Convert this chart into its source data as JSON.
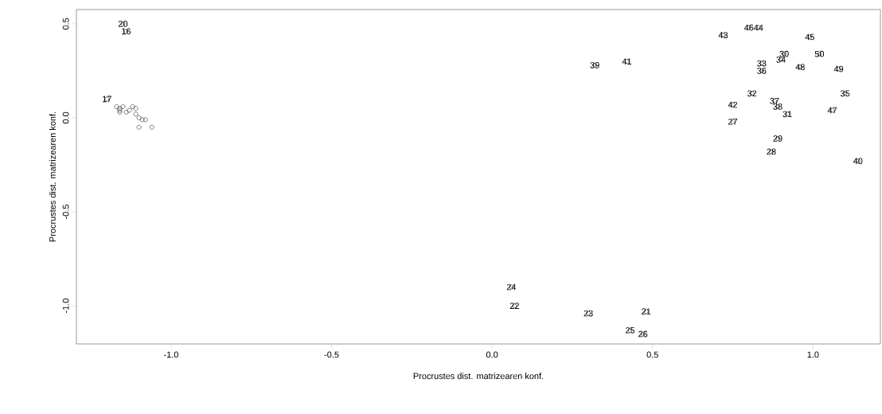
{
  "chart_data": {
    "type": "scatter",
    "xlabel": "Procrustes dist. matrizearen konf.",
    "ylabel": "Procrustes dist. matrizearen konf.",
    "marker": "circle",
    "color": "#000000",
    "xlim": [
      -1.295,
      1.21
    ],
    "ylim": [
      -1.203,
      0.576
    ],
    "xticks": [
      {
        "value": -1.0,
        "label": "-1.0"
      },
      {
        "value": -0.5,
        "label": "-0.5"
      },
      {
        "value": 0.0,
        "label": "0.0"
      },
      {
        "value": 0.5,
        "label": "0.5"
      },
      {
        "value": 1.0,
        "label": "1.0"
      }
    ],
    "yticks": [
      {
        "value": -1.0,
        "label": "-1.0"
      },
      {
        "value": -0.5,
        "label": "-0.5"
      },
      {
        "value": 0.0,
        "label": "0.0"
      },
      {
        "value": 0.5,
        "label": "0.5"
      }
    ],
    "x": [
      -1.15,
      -1.14,
      -1.2,
      -1.17,
      -1.16,
      -1.16,
      -1.15,
      -1.12,
      -1.11,
      -1.13,
      -1.1,
      -1.09,
      -1.1,
      -1.08,
      -1.16,
      -1.14,
      -1.11,
      -1.06,
      0.32,
      0.42,
      0.72,
      0.8,
      0.83,
      0.99,
      0.91,
      0.9,
      1.02,
      0.84,
      0.84,
      0.96,
      1.08,
      0.81,
      1.1,
      0.88,
      0.75,
      0.89,
      0.92,
      1.06,
      0.75,
      0.89,
      0.87,
      1.14,
      0.06,
      0.07,
      0.3,
      0.48,
      0.43,
      0.47
    ],
    "values": [
      0.5,
      0.46,
      0.1,
      0.06,
      0.05,
      0.04,
      0.06,
      0.06,
      0.05,
      0.04,
      0.0,
      -0.01,
      -0.05,
      -0.01,
      0.03,
      0.03,
      0.02,
      -0.05,
      0.28,
      0.3,
      0.44,
      0.48,
      0.48,
      0.43,
      0.34,
      0.31,
      0.34,
      0.29,
      0.25,
      0.27,
      0.26,
      0.13,
      0.13,
      0.09,
      0.07,
      0.06,
      0.02,
      0.04,
      -0.02,
      -0.11,
      -0.18,
      -0.23,
      -0.9,
      -1.0,
      -1.04,
      -1.03,
      -1.13,
      -1.15
    ],
    "annotations": [
      {
        "text": "20",
        "x": -1.15,
        "y": 0.5
      },
      {
        "text": "16",
        "x": -1.14,
        "y": 0.46
      },
      {
        "text": "17",
        "x": -1.2,
        "y": 0.1
      },
      {
        "text": "39",
        "x": 0.32,
        "y": 0.28
      },
      {
        "text": "41",
        "x": 0.42,
        "y": 0.3
      },
      {
        "text": "43",
        "x": 0.72,
        "y": 0.44
      },
      {
        "text": "46",
        "x": 0.8,
        "y": 0.48
      },
      {
        "text": "44",
        "x": 0.83,
        "y": 0.48
      },
      {
        "text": "45",
        "x": 0.99,
        "y": 0.43
      },
      {
        "text": "30",
        "x": 0.91,
        "y": 0.34
      },
      {
        "text": "34",
        "x": 0.9,
        "y": 0.31
      },
      {
        "text": "50",
        "x": 1.02,
        "y": 0.34
      },
      {
        "text": "33",
        "x": 0.84,
        "y": 0.29
      },
      {
        "text": "36",
        "x": 0.84,
        "y": 0.25
      },
      {
        "text": "48",
        "x": 0.96,
        "y": 0.27
      },
      {
        "text": "49",
        "x": 1.08,
        "y": 0.26
      },
      {
        "text": "32",
        "x": 0.81,
        "y": 0.13
      },
      {
        "text": "35",
        "x": 1.1,
        "y": 0.13
      },
      {
        "text": "37",
        "x": 0.88,
        "y": 0.09
      },
      {
        "text": "42",
        "x": 0.75,
        "y": 0.07
      },
      {
        "text": "38",
        "x": 0.89,
        "y": 0.06
      },
      {
        "text": "31",
        "x": 0.92,
        "y": 0.02
      },
      {
        "text": "47",
        "x": 1.06,
        "y": 0.04
      },
      {
        "text": "27",
        "x": 0.75,
        "y": -0.02
      },
      {
        "text": "29",
        "x": 0.89,
        "y": -0.11
      },
      {
        "text": "28",
        "x": 0.87,
        "y": -0.18
      },
      {
        "text": "40",
        "x": 1.14,
        "y": -0.23
      },
      {
        "text": "24",
        "x": 0.06,
        "y": -0.9
      },
      {
        "text": "22",
        "x": 0.07,
        "y": -1.0
      },
      {
        "text": "23",
        "x": 0.3,
        "y": -1.04
      },
      {
        "text": "21",
        "x": 0.48,
        "y": -1.03
      },
      {
        "text": "25",
        "x": 0.43,
        "y": -1.13
      },
      {
        "text": "26",
        "x": 0.47,
        "y": -1.15
      }
    ]
  }
}
